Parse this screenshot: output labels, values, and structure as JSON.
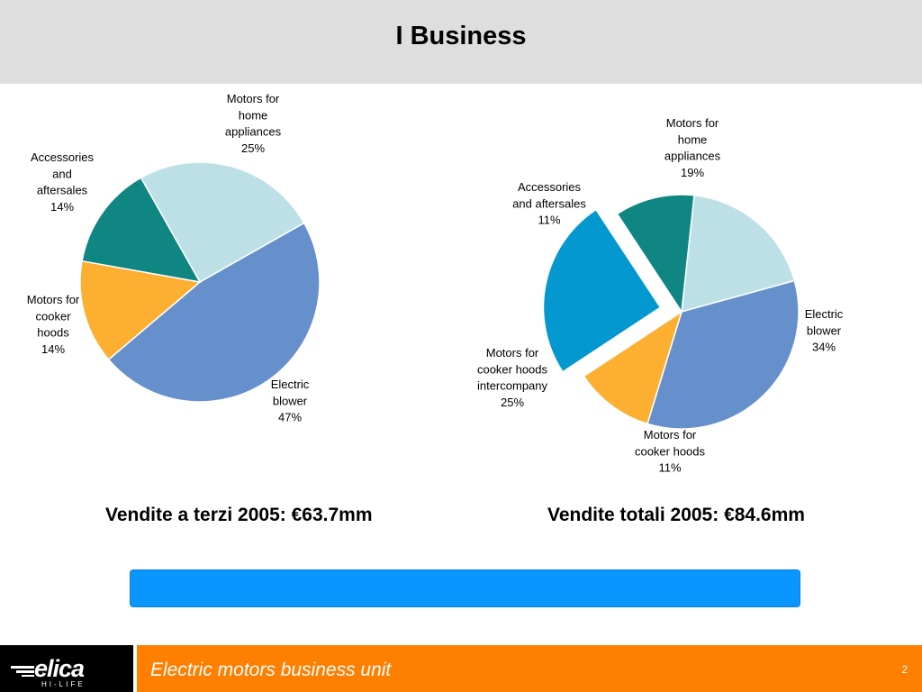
{
  "page": {
    "title": "I Business",
    "page_number": "2"
  },
  "captions": {
    "left": "Vendite a terzi 2005: €63.7mm",
    "right": "Vendite totali 2005: €84.6mm"
  },
  "footer": {
    "text": "Electric motors business unit",
    "logo_text": "elica",
    "logo_subtext": "HI-LIFE"
  },
  "colors": {
    "header_band": "#dedede",
    "footer_bar": "#ff7f00",
    "blue_box": "#0a96ff",
    "logo_bg": "#000000"
  },
  "chart_data": [
    {
      "type": "pie",
      "title": "Vendite a terzi 2005: €63.7mm",
      "slices": [
        {
          "label": [
            "Motors for",
            "home",
            "appliances"
          ],
          "value": 25,
          "value_label": "25%",
          "color": "#bde0e6"
        },
        {
          "label": [
            "Electric",
            "blower"
          ],
          "value": 47,
          "value_label": "47%",
          "color": "#6590cb"
        },
        {
          "label": [
            "Motors for",
            "cooker",
            "hoods"
          ],
          "value": 14,
          "value_label": "14%",
          "color": "#fdaf32"
        },
        {
          "label": [
            "Accessories",
            "and",
            "aftersales"
          ],
          "value": 14,
          "value_label": "14%",
          "color": "#0f8682"
        }
      ]
    },
    {
      "type": "pie",
      "title": "Vendite totali 2005: €84.6mm",
      "slices": [
        {
          "label": [
            "Motors for",
            "home",
            "appliances"
          ],
          "value": 19,
          "value_label": "19%",
          "color": "#bde0e6"
        },
        {
          "label": [
            "Electric",
            "blower"
          ],
          "value": 34,
          "value_label": "34%",
          "color": "#6590cb"
        },
        {
          "label": [
            "Motors for",
            "cooker hoods"
          ],
          "value": 11,
          "value_label": "11%",
          "color": "#fdaf32"
        },
        {
          "label": [
            "Motors for",
            "cooker hoods",
            "intercompany"
          ],
          "value": 25,
          "value_label": "25%",
          "color": "#0398cf",
          "exploded": true
        },
        {
          "label": [
            "Accessories",
            "and aftersales"
          ],
          "value": 11,
          "value_label": "11%",
          "color": "#0f8682"
        }
      ]
    }
  ]
}
